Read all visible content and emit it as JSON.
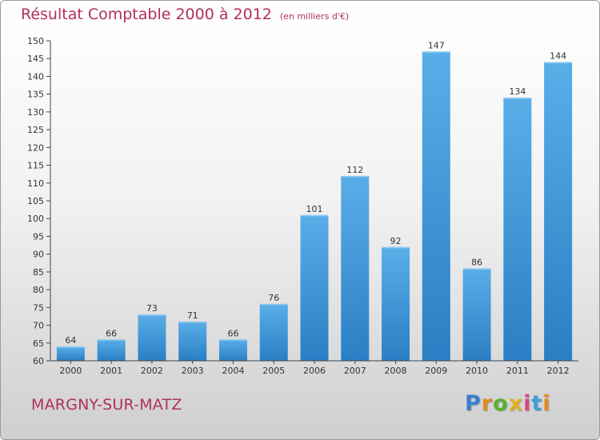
{
  "chart_data": {
    "type": "bar",
    "title": "Résultat Comptable 2000 à 2012",
    "subtitle": "(en milliers d'€)",
    "categories": [
      "2000",
      "2001",
      "2002",
      "2003",
      "2004",
      "2005",
      "2006",
      "2007",
      "2008",
      "2009",
      "2010",
      "2011",
      "2012"
    ],
    "values": [
      64,
      66,
      73,
      71,
      66,
      76,
      101,
      112,
      92,
      147,
      86,
      134,
      144
    ],
    "ylim": [
      60,
      150
    ],
    "yticks": [
      60,
      65,
      70,
      75,
      80,
      85,
      90,
      95,
      100,
      105,
      110,
      115,
      120,
      125,
      130,
      135,
      140,
      145,
      150
    ],
    "xlabel": "",
    "ylabel": "",
    "grid": false,
    "bar_color_top": "#5aaee8",
    "bar_color_bottom": "#2a7fc4"
  },
  "footer": {
    "town": "MARGNY-SUR-MATZ",
    "logo_letters": [
      {
        "ch": "P",
        "color": "#3a7fd0"
      },
      {
        "ch": "r",
        "color": "#e08a1e"
      },
      {
        "ch": "o",
        "color": "#58b02e"
      },
      {
        "ch": "x",
        "color": "#e0b01a"
      },
      {
        "ch": "i",
        "color": "#d04a8a"
      },
      {
        "ch": "t",
        "color": "#3aa0d8"
      },
      {
        "ch": "i",
        "color": "#e08a1e"
      }
    ]
  },
  "colors": {
    "title": "#b0305a",
    "axis": "#333333"
  }
}
